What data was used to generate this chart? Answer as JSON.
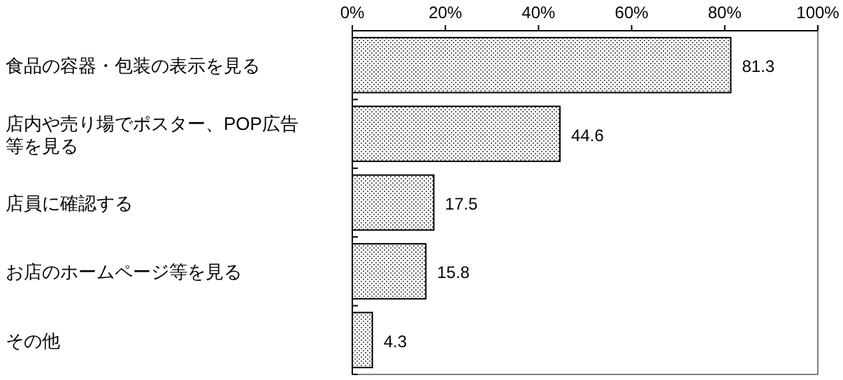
{
  "chart_data": {
    "type": "bar",
    "orientation": "horizontal",
    "categories": [
      "食品の容器・包装の表示を見る",
      "店内や売り場でポスター、POP広告等を見る",
      "店員に確認する",
      "お店のホームページ等を見る",
      "その他"
    ],
    "values": [
      81.3,
      44.6,
      17.5,
      15.8,
      4.3
    ],
    "color": "#000000",
    "xlim": [
      0,
      100
    ],
    "xticks": [
      {
        "value": 0,
        "label": "0%"
      },
      {
        "value": 20,
        "label": "20%"
      },
      {
        "value": 40,
        "label": "40%"
      },
      {
        "value": 60,
        "label": "60%"
      },
      {
        "value": 80,
        "label": "80%"
      },
      {
        "value": 100,
        "label": "100%"
      }
    ],
    "data_labels": true,
    "grid": false
  }
}
